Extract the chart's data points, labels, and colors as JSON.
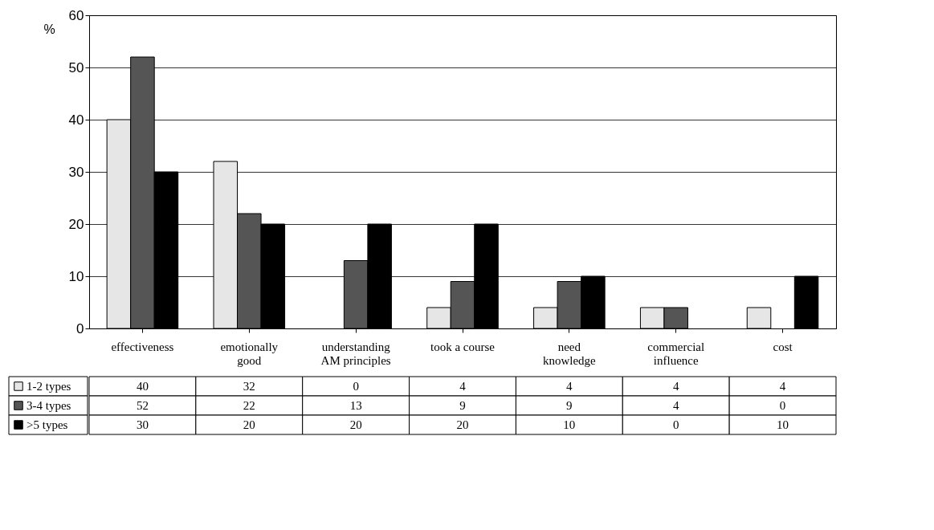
{
  "chart_data": {
    "type": "bar",
    "ylabel": "%",
    "categories": [
      "effectiveness",
      "emotionally good",
      "understanding AM principles",
      "took a course",
      "need knowledge",
      "commercial influence",
      "cost"
    ],
    "series": [
      {
        "name": "1-2 types",
        "color": "#e6e6e6",
        "values": [
          40,
          32,
          0,
          4,
          4,
          4,
          4
        ]
      },
      {
        "name": "3-4 types",
        "color": "#555555",
        "values": [
          52,
          22,
          13,
          9,
          9,
          4,
          0
        ]
      },
      {
        "name": ">5 types",
        "color": "#000000",
        "values": [
          30,
          20,
          20,
          20,
          10,
          0,
          10
        ]
      }
    ],
    "ylim": [
      0,
      60
    ],
    "yticks": [
      0,
      10,
      20,
      30,
      40,
      50,
      60
    ],
    "grid": "y",
    "legend": "bottom",
    "data_labels": true
  }
}
